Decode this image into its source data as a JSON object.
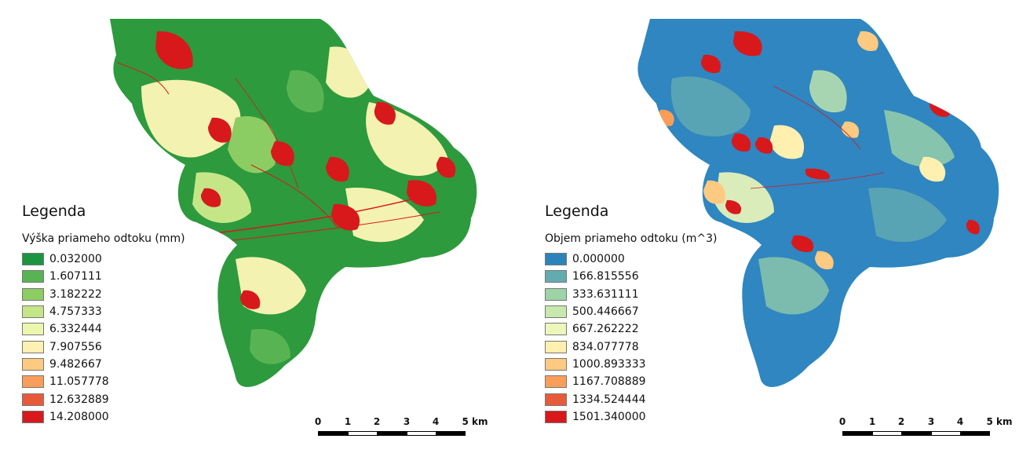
{
  "maps": [
    {
      "legend_title": "Legenda",
      "legend_subtitle": "Výška priameho odtoku (mm)",
      "classes": [
        {
          "label": "0.032000",
          "color": "#1a9641"
        },
        {
          "label": "1.607111",
          "color": "#58b453"
        },
        {
          "label": "3.182222",
          "color": "#8ccd63"
        },
        {
          "label": "4.757333",
          "color": "#c4e687"
        },
        {
          "label": "6.332444",
          "color": "#ecf7ad"
        },
        {
          "label": "7.907556",
          "color": "#fff0b3"
        },
        {
          "label": "9.482667",
          "color": "#fec980"
        },
        {
          "label": "11.057778",
          "color": "#f99e59"
        },
        {
          "label": "12.632889",
          "color": "#e85b3a"
        },
        {
          "label": "14.208000",
          "color": "#d7191c"
        }
      ],
      "scalebar": {
        "ticks": [
          "0",
          "1",
          "2",
          "3",
          "4",
          "5 km"
        ]
      }
    },
    {
      "legend_title": "Legenda",
      "legend_subtitle": "Objem priameho odtoku (m^3)",
      "classes": [
        {
          "label": "0.000000",
          "color": "#2b83ba"
        },
        {
          "label": "166.815556",
          "color": "#64abb0"
        },
        {
          "label": "333.631111",
          "color": "#9dd3a7"
        },
        {
          "label": "500.446667",
          "color": "#c7e9ad"
        },
        {
          "label": "667.262222",
          "color": "#ecf7b9"
        },
        {
          "label": "834.077778",
          "color": "#fff0b0"
        },
        {
          "label": "1000.893333",
          "color": "#fec980"
        },
        {
          "label": "1167.708889",
          "color": "#f99e59"
        },
        {
          "label": "1334.524444",
          "color": "#e85b3a"
        },
        {
          "label": "1501.340000",
          "color": "#d7191c"
        }
      ],
      "scalebar": {
        "ticks": [
          "0",
          "1",
          "2",
          "3",
          "4",
          "5 km"
        ]
      }
    }
  ]
}
